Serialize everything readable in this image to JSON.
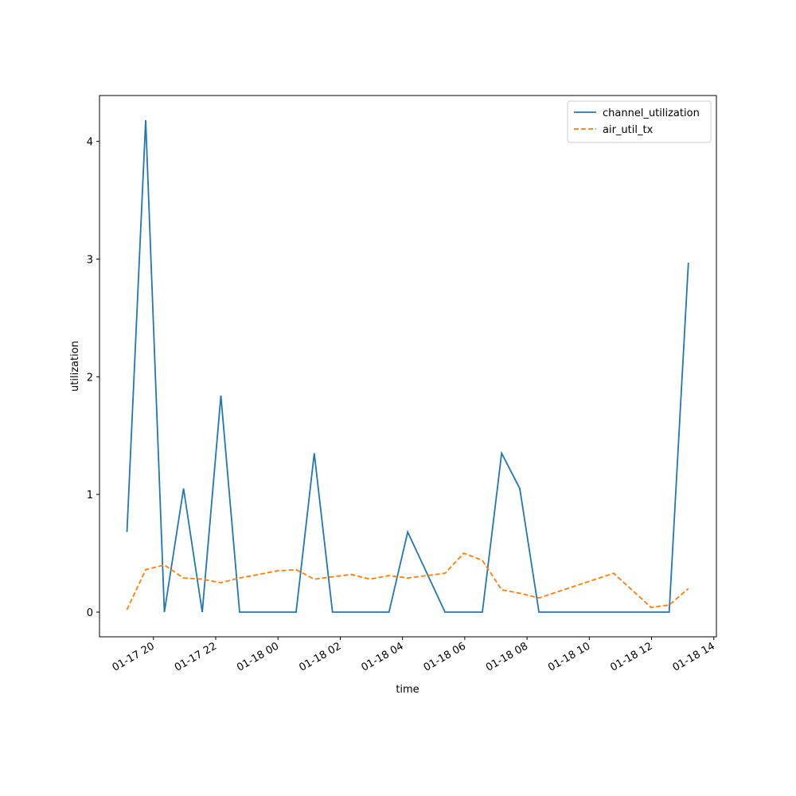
{
  "chart_data": {
    "type": "line",
    "x_label": "time",
    "y_label": "utilization",
    "x": [
      "01-17 19:09",
      "01-17 19:45",
      "01-17 20:21",
      "01-17 20:58",
      "01-17 21:34",
      "01-17 22:10",
      "01-17 22:46",
      "01-17 23:23",
      "01-17 23:58",
      "01-18 00:35",
      "01-18 01:10",
      "01-18 01:45",
      "01-18 02:22",
      "01-18 02:57",
      "01-18 03:34",
      "01-18 04:10",
      "01-18 05:22",
      "01-18 05:58",
      "01-18 06:34",
      "01-18 07:11",
      "01-18 07:46",
      "01-18 08:23",
      "01-18 10:47",
      "01-18 11:59",
      "01-18 12:34",
      "01-18 13:11"
    ],
    "series": [
      {
        "name": "channel_utilization",
        "color": "#1f77b4",
        "dash": "solid",
        "values": [
          0.68,
          4.18,
          0,
          1.05,
          0,
          1.84,
          0,
          0,
          0,
          0,
          1.35,
          0,
          0,
          0,
          0,
          0.68,
          0,
          0,
          0,
          1.35,
          1.05,
          0,
          0,
          0,
          0,
          2.97
        ]
      },
      {
        "name": "air_util_tx",
        "color": "#ff7f0e",
        "dash": "dashed",
        "values": [
          0.02,
          0.36,
          0.4,
          0.29,
          0.28,
          0.25,
          0.29,
          0.32,
          0.35,
          0.36,
          0.28,
          0.3,
          0.32,
          0.28,
          0.31,
          0.29,
          0.33,
          0.5,
          0.44,
          0.19,
          0.16,
          0.12,
          0.33,
          0.04,
          0.06,
          0.2
        ]
      }
    ],
    "xlim": [
      "01-17 18:16",
      "01-18 14:05"
    ],
    "xticks": [
      "01-17 20",
      "01-17 22",
      "01-18 00",
      "01-18 02",
      "01-18 04",
      "01-18 06",
      "01-18 08",
      "01-18 10",
      "01-18 12",
      "01-18 14"
    ],
    "ylim": [
      -0.21,
      4.39
    ],
    "yticks": [
      0,
      1,
      2,
      3,
      4
    ],
    "grid": false,
    "legend": "upper right"
  }
}
